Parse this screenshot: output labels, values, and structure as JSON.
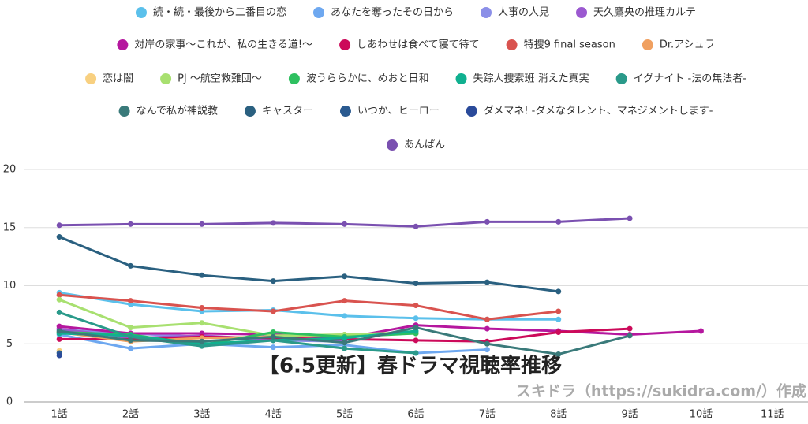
{
  "chart_data": {
    "type": "line",
    "title": "【6.5更新】春ドラマ視聴率推移",
    "credit": "スキドラ（https://sukidra.com/）作成",
    "categories": [
      "1話",
      "2話",
      "3話",
      "4話",
      "5話",
      "6話",
      "7話",
      "8話",
      "9話",
      "10話",
      "11話"
    ],
    "ylim": [
      0,
      20
    ],
    "yticks": [
      0,
      5,
      10,
      15,
      20
    ],
    "grid": true,
    "series": [
      {
        "name": "続・続・最後から二番目の恋",
        "color": "#5bc0eb",
        "values": [
          9.4,
          8.4,
          7.8,
          7.9,
          7.4,
          7.2,
          7.1,
          7.1,
          null,
          null,
          null
        ]
      },
      {
        "name": "あなたを奪ったその日から",
        "color": "#6ea8f0",
        "values": [
          5.8,
          4.6,
          5.0,
          4.7,
          4.9,
          4.2,
          4.5,
          null,
          null,
          null,
          null
        ]
      },
      {
        "name": "人事の人見",
        "color": "#8b8fe8",
        "values": [
          6.2,
          5.9,
          5.6,
          5.3,
          5.2,
          null,
          null,
          null,
          null,
          null,
          null
        ]
      },
      {
        "name": "天久鷹央の推理カルテ",
        "color": "#9b59d0",
        "values": [
          6.3,
          5.5,
          5.7,
          5.4,
          5.3,
          null,
          null,
          null,
          null,
          null,
          null
        ]
      },
      {
        "name": "対岸の家事～これが、私の生きる道!～",
        "color": "#b5179e",
        "values": [
          6.5,
          5.9,
          5.9,
          5.8,
          5.5,
          6.6,
          6.3,
          6.1,
          5.8,
          6.1,
          null
        ]
      },
      {
        "name": "しあわせは食べて寝て待て",
        "color": "#cc0a5a",
        "values": [
          5.4,
          5.4,
          5.6,
          5.5,
          5.4,
          5.3,
          5.2,
          6.0,
          6.3,
          null,
          null
        ]
      },
      {
        "name": "特捜9 final season",
        "color": "#d9534f",
        "values": [
          9.2,
          8.7,
          8.1,
          7.8,
          8.7,
          8.3,
          7.1,
          7.8,
          null,
          null,
          null
        ]
      },
      {
        "name": "Dr.アシュラ",
        "color": "#f0a060",
        "values": [
          6.0,
          5.2,
          5.5,
          5.6,
          5.8,
          5.9,
          null,
          null,
          null,
          null,
          null
        ]
      },
      {
        "name": "恋は闇",
        "color": "#f8d080",
        "values": [
          4.4,
          null,
          null,
          null,
          null,
          null,
          null,
          null,
          null,
          null,
          null
        ]
      },
      {
        "name": "PJ ～航空救難団～",
        "color": "#a8e070",
        "values": [
          8.8,
          6.4,
          6.8,
          5.7,
          5.8,
          6.0,
          null,
          null,
          null,
          null,
          null
        ]
      },
      {
        "name": "波うららかに、めおと日和",
        "color": "#2ec060",
        "values": [
          6.0,
          5.8,
          4.9,
          6.0,
          5.6,
          5.9,
          null,
          null,
          null,
          null,
          null
        ]
      },
      {
        "name": "失踪人捜索班 消えた真実",
        "color": "#10b090",
        "values": [
          5.9,
          5.7,
          5.0,
          5.3,
          5.5,
          6.1,
          null,
          null,
          null,
          null,
          null
        ]
      },
      {
        "name": "イグナイト -法の無法者-",
        "color": "#2a9a8a",
        "values": [
          7.7,
          5.6,
          4.8,
          5.3,
          4.6,
          4.2,
          null,
          null,
          null,
          null,
          null
        ]
      },
      {
        "name": "なんで私が神説教",
        "color": "#3a7a7a",
        "values": [
          6.1,
          5.3,
          5.2,
          5.6,
          5.1,
          6.4,
          5.0,
          4.1,
          5.7,
          null,
          null
        ]
      },
      {
        "name": "キャスター",
        "color": "#2a6080",
        "values": [
          14.2,
          11.7,
          10.9,
          10.4,
          10.8,
          10.2,
          10.3,
          9.5,
          null,
          null,
          null
        ]
      },
      {
        "name": "いつか、ヒーロー",
        "color": "#2a5a90",
        "values": [
          4.2,
          null,
          null,
          null,
          null,
          null,
          null,
          null,
          null,
          null,
          null
        ]
      },
      {
        "name": "ダメマネ! -ダメなタレント、マネジメントします-",
        "color": "#2a4a9a",
        "values": [
          4.0,
          null,
          null,
          null,
          null,
          null,
          null,
          null,
          null,
          null,
          null
        ]
      },
      {
        "name": "あんぱん",
        "color": "#7a50b0",
        "values": [
          15.2,
          15.3,
          15.3,
          15.4,
          15.3,
          15.1,
          15.5,
          15.5,
          15.8,
          null,
          null
        ]
      }
    ]
  }
}
